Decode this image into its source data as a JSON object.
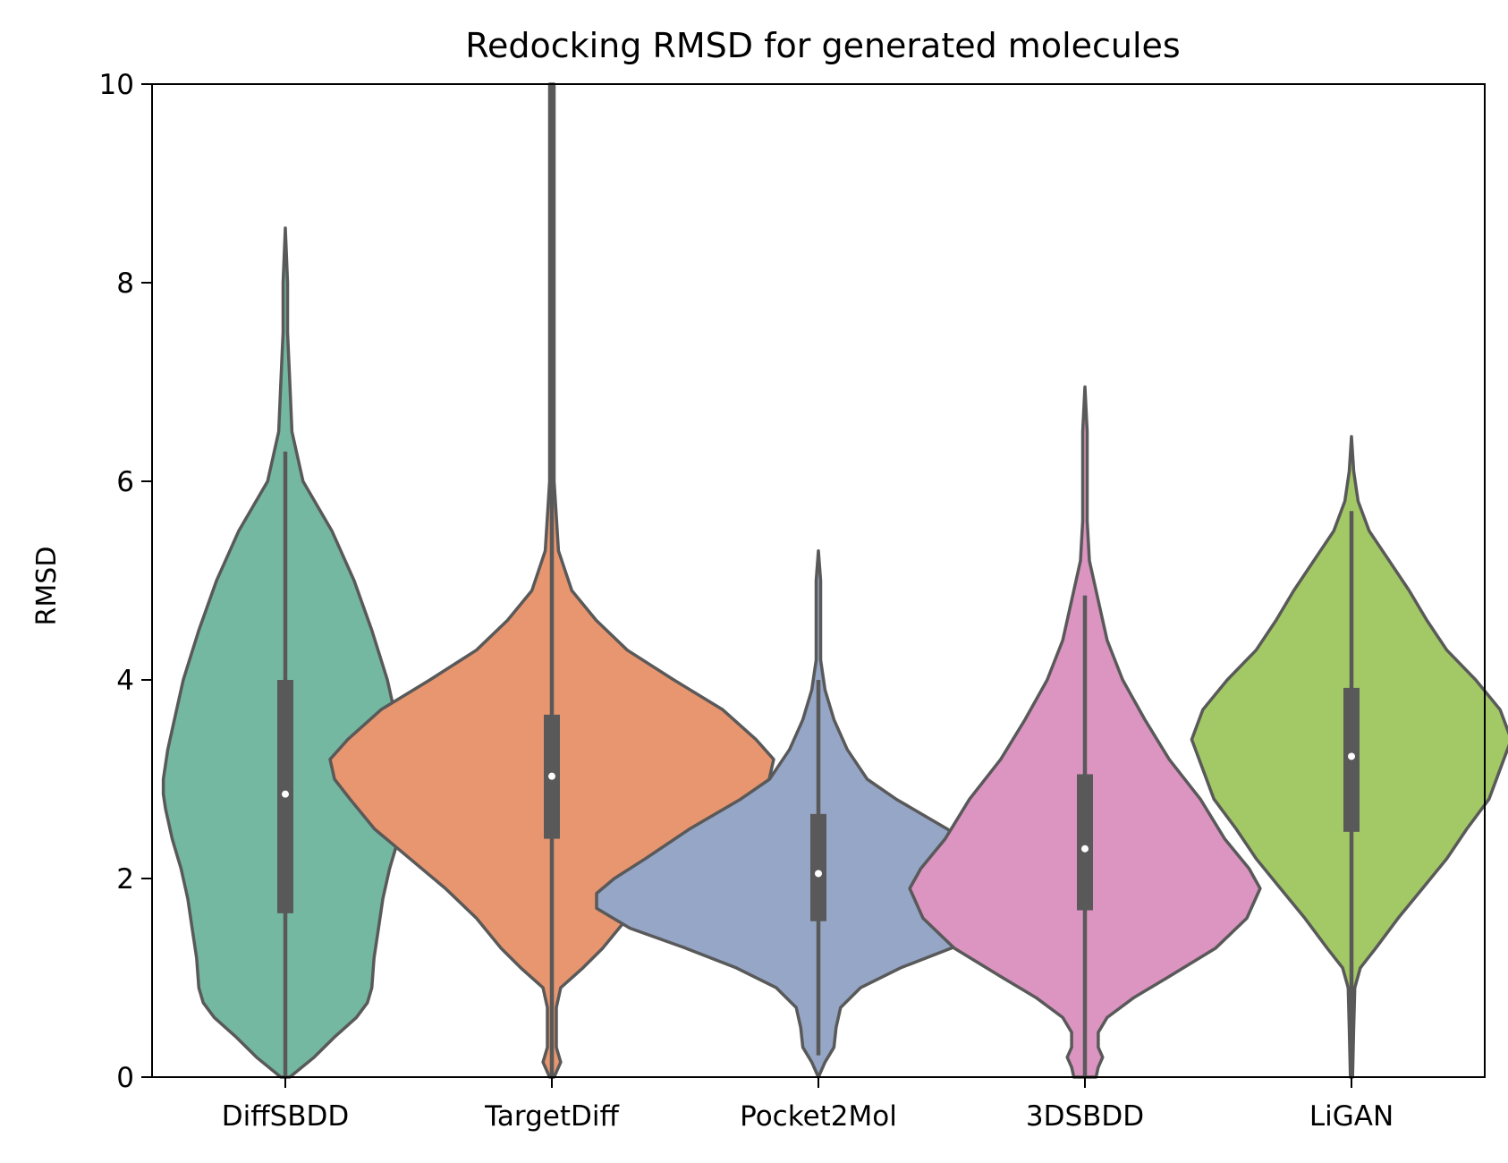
{
  "chart_data": {
    "type": "violin",
    "title": "Redocking RMSD for generated molecules",
    "xlabel": "",
    "ylabel": "RMSD",
    "ylim": [
      0,
      10
    ],
    "yticks": [
      0,
      2,
      4,
      6,
      8,
      10
    ],
    "categories": [
      "DiffSBDD",
      "TargetDiff",
      "Pocket2Mol",
      "3DSBDD",
      "LiGAN"
    ],
    "violins": [
      {
        "category": "DiffSBDD",
        "color": "#74b8a2",
        "median": 2.85,
        "q1": 1.65,
        "q3": 4.0,
        "whisker_low": 0.0,
        "whisker_high": 6.3,
        "ymin": 0.0,
        "ymax": 8.55,
        "profile": [
          [
            0.0,
            0.02
          ],
          [
            0.2,
            0.13
          ],
          [
            0.4,
            0.22
          ],
          [
            0.6,
            0.32
          ],
          [
            0.75,
            0.37
          ],
          [
            0.9,
            0.39
          ],
          [
            1.2,
            0.4
          ],
          [
            1.5,
            0.42
          ],
          [
            1.8,
            0.44
          ],
          [
            2.1,
            0.47
          ],
          [
            2.4,
            0.51
          ],
          [
            2.7,
            0.54
          ],
          [
            2.85,
            0.55
          ],
          [
            3.0,
            0.55
          ],
          [
            3.3,
            0.53
          ],
          [
            3.6,
            0.5
          ],
          [
            4.0,
            0.46
          ],
          [
            4.5,
            0.39
          ],
          [
            5.0,
            0.31
          ],
          [
            5.5,
            0.21
          ],
          [
            6.0,
            0.08
          ],
          [
            6.5,
            0.03
          ],
          [
            7.0,
            0.02
          ],
          [
            7.5,
            0.01
          ],
          [
            8.0,
            0.01
          ],
          [
            8.55,
            0.0
          ]
        ]
      },
      {
        "category": "TargetDiff",
        "color": "#e8966f",
        "median": 3.03,
        "q1": 2.4,
        "q3": 3.65,
        "whisker_low": 0.0,
        "whisker_high": 10.0,
        "ymin": 0.0,
        "ymax": 10.0,
        "profile": [
          [
            0.0,
            0.01
          ],
          [
            0.15,
            0.04
          ],
          [
            0.3,
            0.02
          ],
          [
            0.5,
            0.02
          ],
          [
            0.7,
            0.02
          ],
          [
            0.9,
            0.04
          ],
          [
            1.1,
            0.14
          ],
          [
            1.3,
            0.23
          ],
          [
            1.6,
            0.34
          ],
          [
            1.9,
            0.48
          ],
          [
            2.2,
            0.64
          ],
          [
            2.5,
            0.8
          ],
          [
            2.8,
            0.91
          ],
          [
            3.0,
            0.98
          ],
          [
            3.2,
            1.0
          ],
          [
            3.4,
            0.92
          ],
          [
            3.7,
            0.77
          ],
          [
            4.0,
            0.55
          ],
          [
            4.3,
            0.34
          ],
          [
            4.6,
            0.2
          ],
          [
            4.9,
            0.09
          ],
          [
            5.3,
            0.03
          ],
          [
            6.0,
            0.01
          ],
          [
            7.0,
            0.01
          ],
          [
            8.0,
            0.01
          ],
          [
            9.0,
            0.01
          ],
          [
            10.0,
            0.01
          ]
        ]
      },
      {
        "category": "Pocket2Mol",
        "color": "#95a6c6",
        "median": 2.05,
        "q1": 1.57,
        "q3": 2.65,
        "whisker_low": 0.22,
        "whisker_high": 4.0,
        "ymin": 0.0,
        "ymax": 5.3,
        "profile": [
          [
            0.0,
            0.0
          ],
          [
            0.15,
            0.03
          ],
          [
            0.3,
            0.07
          ],
          [
            0.5,
            0.08
          ],
          [
            0.7,
            0.1
          ],
          [
            0.9,
            0.19
          ],
          [
            1.1,
            0.37
          ],
          [
            1.3,
            0.6
          ],
          [
            1.5,
            0.85
          ],
          [
            1.7,
            1.0
          ],
          [
            1.85,
            1.0
          ],
          [
            2.0,
            0.92
          ],
          [
            2.2,
            0.78
          ],
          [
            2.5,
            0.58
          ],
          [
            2.8,
            0.35
          ],
          [
            3.0,
            0.22
          ],
          [
            3.3,
            0.13
          ],
          [
            3.6,
            0.07
          ],
          [
            3.9,
            0.03
          ],
          [
            4.2,
            0.01
          ],
          [
            4.6,
            0.01
          ],
          [
            5.0,
            0.01
          ],
          [
            5.3,
            0.0
          ]
        ]
      },
      {
        "category": "3DSBDD",
        "color": "#dc94c1",
        "median": 2.3,
        "q1": 1.68,
        "q3": 3.05,
        "whisker_low": 0.0,
        "whisker_high": 4.85,
        "ymin": 0.0,
        "ymax": 6.95,
        "profile": [
          [
            0.0,
            0.05
          ],
          [
            0.1,
            0.06
          ],
          [
            0.2,
            0.08
          ],
          [
            0.3,
            0.06
          ],
          [
            0.45,
            0.06
          ],
          [
            0.6,
            0.1
          ],
          [
            0.8,
            0.22
          ],
          [
            1.0,
            0.37
          ],
          [
            1.3,
            0.59
          ],
          [
            1.6,
            0.73
          ],
          [
            1.9,
            0.79
          ],
          [
            2.1,
            0.74
          ],
          [
            2.4,
            0.63
          ],
          [
            2.8,
            0.52
          ],
          [
            3.2,
            0.38
          ],
          [
            3.6,
            0.27
          ],
          [
            4.0,
            0.17
          ],
          [
            4.4,
            0.1
          ],
          [
            4.8,
            0.06
          ],
          [
            5.2,
            0.02
          ],
          [
            5.6,
            0.01
          ],
          [
            6.0,
            0.01
          ],
          [
            6.5,
            0.01
          ],
          [
            6.95,
            0.0
          ]
        ]
      },
      {
        "category": "LiGAN",
        "color": "#a2c965",
        "median": 3.23,
        "q1": 2.47,
        "q3": 3.92,
        "whisker_low": 0.0,
        "whisker_high": 5.7,
        "ymin": 0.0,
        "ymax": 6.45,
        "profile": [
          [
            0.0,
            0.005
          ],
          [
            0.5,
            0.01
          ],
          [
            0.9,
            0.015
          ],
          [
            1.1,
            0.04
          ],
          [
            1.3,
            0.11
          ],
          [
            1.6,
            0.21
          ],
          [
            1.9,
            0.32
          ],
          [
            2.2,
            0.43
          ],
          [
            2.5,
            0.52
          ],
          [
            2.8,
            0.62
          ],
          [
            3.1,
            0.67
          ],
          [
            3.4,
            0.72
          ],
          [
            3.7,
            0.67
          ],
          [
            4.0,
            0.56
          ],
          [
            4.3,
            0.43
          ],
          [
            4.6,
            0.34
          ],
          [
            4.9,
            0.26
          ],
          [
            5.2,
            0.17
          ],
          [
            5.5,
            0.08
          ],
          [
            5.8,
            0.03
          ],
          [
            6.1,
            0.01
          ],
          [
            6.45,
            0.0
          ]
        ]
      }
    ]
  }
}
